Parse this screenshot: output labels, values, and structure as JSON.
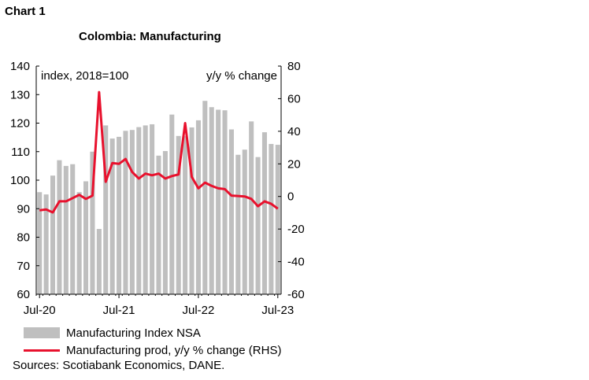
{
  "chart_label": "Chart 1",
  "chart_title": "Colombia: Manufacturing",
  "legend": {
    "bar_label": "Manufacturing Index NSA",
    "line_label": "Manufacturing prod, y/y % change (RHS)"
  },
  "source": "Sources: Scotiabank Economics, DANE.",
  "colors": {
    "bar": "#bfbfbf",
    "line": "#e8112d",
    "axis": "#000000"
  },
  "chart_data": {
    "type": "bar",
    "title": "Colombia: Manufacturing",
    "left_axis_label": "index, 2018=100",
    "right_axis_label": "y/y % change",
    "ylim_left": [
      60,
      140
    ],
    "ylim_right": [
      -60,
      80
    ],
    "yticks_left": [
      60,
      70,
      80,
      90,
      100,
      110,
      120,
      130,
      140
    ],
    "yticks_right": [
      -60,
      -40,
      -20,
      0,
      20,
      40,
      60,
      80
    ],
    "x_tick_labels": [
      "Jul-20",
      "Jul-21",
      "Jul-22",
      "Jul-23"
    ],
    "categories": [
      "Jul-20",
      "Aug-20",
      "Sep-20",
      "Oct-20",
      "Nov-20",
      "Dec-20",
      "Jan-21",
      "Feb-21",
      "Mar-21",
      "Apr-21",
      "May-21",
      "Jun-21",
      "Jul-21",
      "Aug-21",
      "Sep-21",
      "Oct-21",
      "Nov-21",
      "Dec-21",
      "Jan-22",
      "Feb-22",
      "Mar-22",
      "Apr-22",
      "May-22",
      "Jun-22",
      "Jul-22",
      "Aug-22",
      "Sep-22",
      "Oct-22",
      "Nov-22",
      "Dec-22",
      "Jan-23",
      "Feb-23",
      "Mar-23",
      "Apr-23",
      "May-23",
      "Jun-23",
      "Jul-23"
    ],
    "grid": false,
    "legend_position": "bottom",
    "series": [
      {
        "name": "Manufacturing Index NSA",
        "type": "bar",
        "axis": "left",
        "values": [
          95.8,
          95.0,
          101.6,
          107.0,
          105.0,
          105.6,
          95.8,
          99.6,
          110.0,
          82.9,
          119.2,
          114.6,
          115.2,
          117.3,
          117.6,
          118.6,
          119.2,
          119.6,
          108.6,
          110.2,
          123.0,
          115.5,
          115.4,
          118.5,
          121.0,
          127.8,
          125.6,
          124.7,
          124.5,
          117.8,
          108.9,
          110.7,
          120.6,
          108.1,
          116.8,
          112.7,
          112.4
        ]
      },
      {
        "name": "Manufacturing prod, y/y % change (RHS)",
        "type": "line",
        "axis": "right",
        "values": [
          -8.5,
          -8.0,
          -9.8,
          -3.0,
          -3.0,
          -1.0,
          1.0,
          -1.5,
          0.5,
          64.0,
          9.0,
          20.5,
          20.0,
          23.0,
          15.0,
          11.0,
          14.0,
          13.0,
          14.0,
          11.0,
          12.5,
          13.5,
          45.0,
          12.0,
          5.0,
          8.5,
          6.5,
          5.0,
          4.5,
          0.5,
          0.3,
          0.0,
          -1.5,
          -6.0,
          -3.0,
          -4.5,
          -7.5
        ]
      }
    ]
  }
}
